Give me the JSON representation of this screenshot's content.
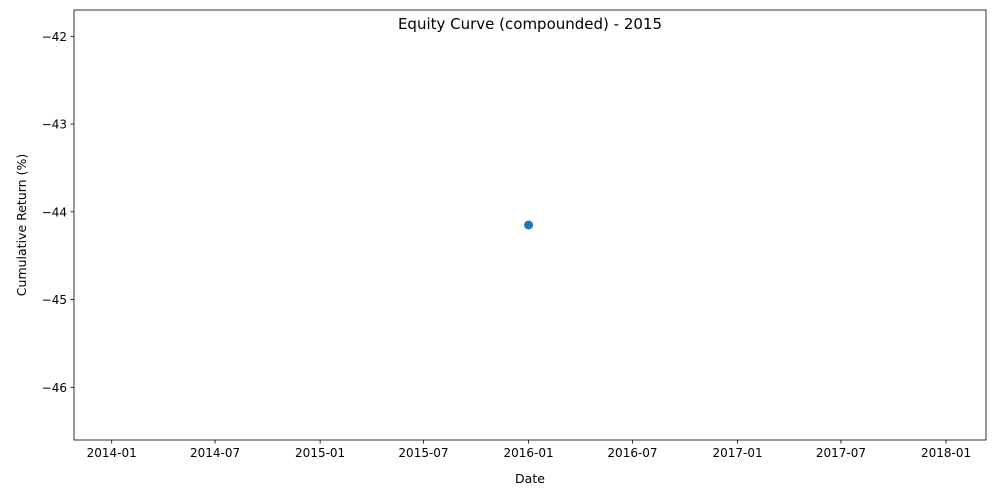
{
  "chart_data": {
    "type": "scatter",
    "title": "Equity Curve (compounded) - 2015",
    "xlabel": "Date",
    "ylabel": "Cumulative Return (%)",
    "x_axis_type": "date",
    "xlim": [
      "2013-10-27",
      "2018-03-12"
    ],
    "ylim": [
      -46.6,
      -41.7
    ],
    "x_ticks": [
      "2014-01-01",
      "2014-07-01",
      "2015-01-01",
      "2015-07-01",
      "2016-01-01",
      "2016-07-01",
      "2017-01-01",
      "2017-07-01",
      "2018-01-01"
    ],
    "x_tick_labels": [
      "2014-01",
      "2014-07",
      "2015-01",
      "2015-07",
      "2016-01",
      "2016-07",
      "2017-01",
      "2017-07",
      "2018-01"
    ],
    "y_ticks": [
      -42,
      -43,
      -44,
      -45,
      -46
    ],
    "y_tick_labels": [
      "−42",
      "−43",
      "−44",
      "−45",
      "−46"
    ],
    "points": [
      {
        "x": "2016-01-01",
        "y": -44.15
      }
    ],
    "marker_color": "#1f77b4",
    "grid": false,
    "legend": false
  }
}
